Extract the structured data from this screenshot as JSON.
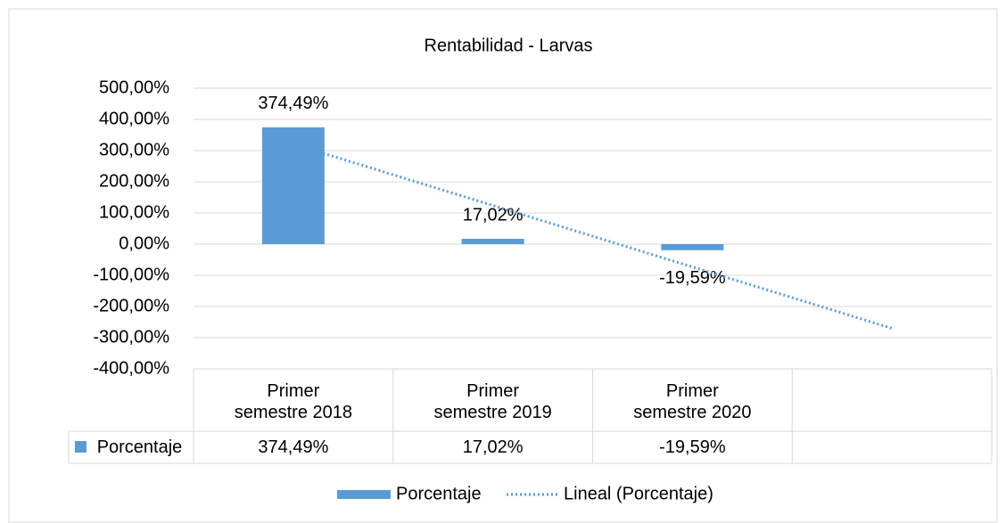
{
  "chart_data": {
    "type": "bar",
    "title": "Rentabilidad - Larvas",
    "categories": [
      "Primer semestre 2018",
      "Primer semestre 2019",
      "Primer semestre 2020",
      null
    ],
    "series": [
      {
        "name": "Porcentaje",
        "color": "#5b9bd5",
        "values": [
          374.49,
          17.02,
          -19.59,
          null
        ],
        "value_labels": [
          "374,49%",
          "17,02%",
          "-19,59%",
          null
        ]
      }
    ],
    "trendline": {
      "name": "Lineal (Porcentaje)",
      "kind": "linear",
      "color": "#5b9bd5"
    },
    "ylim": [
      -400,
      500
    ],
    "yticks": [
      {
        "value": -400,
        "label": "-400,00%"
      },
      {
        "value": -300,
        "label": "-300,00%"
      },
      {
        "value": -200,
        "label": "-200,00%"
      },
      {
        "value": -100,
        "label": "-100,00%"
      },
      {
        "value": 0,
        "label": "0,00%"
      },
      {
        "value": 100,
        "label": "100,00%"
      },
      {
        "value": 200,
        "label": "200,00%"
      },
      {
        "value": 300,
        "label": "300,00%"
      },
      {
        "value": 400,
        "label": "400,00%"
      },
      {
        "value": 500,
        "label": "500,00%"
      }
    ],
    "grid": true,
    "data_table": true,
    "legend": "bottom"
  }
}
